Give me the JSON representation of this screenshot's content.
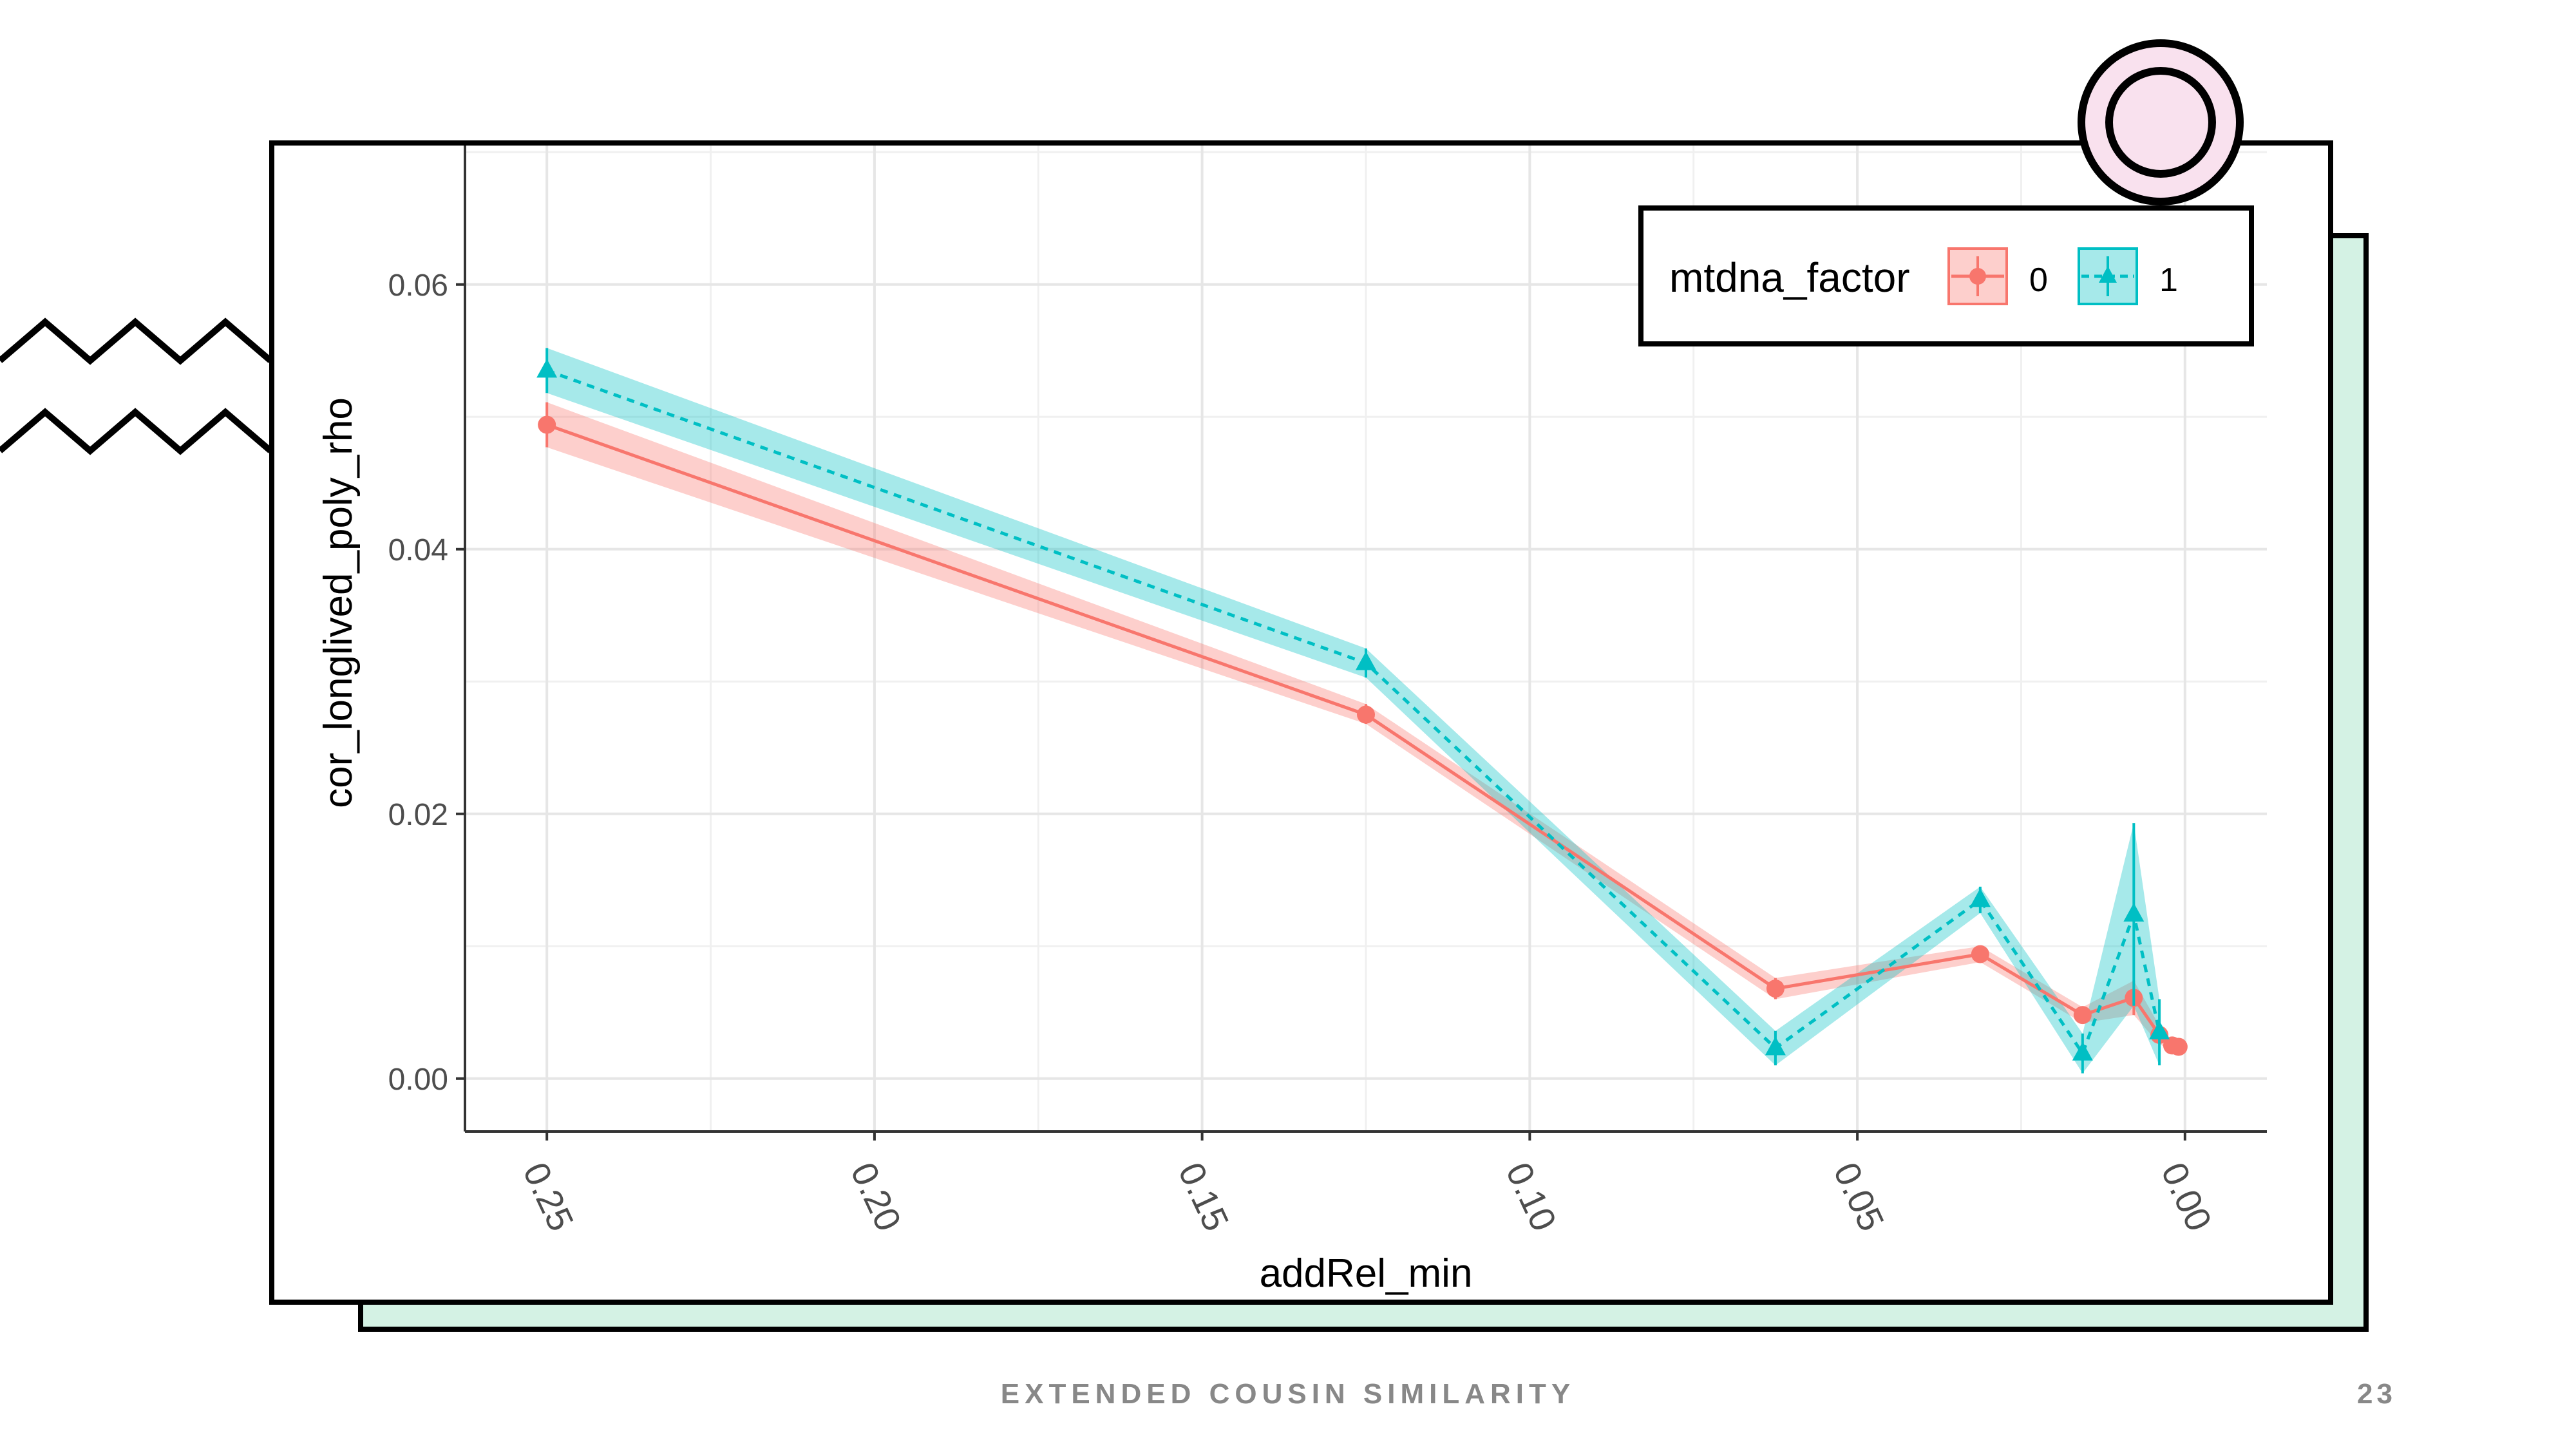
{
  "slide": {
    "footer_title": "EXTENDED COUSIN SIMILARITY",
    "page_number": "23",
    "colors": {
      "mint": "#d4f2e4",
      "ring_fill": "#f9e1ee",
      "border": "#000000",
      "footer": "#888888"
    }
  },
  "chart_data": {
    "type": "line",
    "title": "",
    "xlabel": "addRel_min",
    "ylabel": "cor_longlived_poly_rho",
    "x_reversed": true,
    "xlim": [
      0.2625,
      -0.0125
    ],
    "ylim": [
      -0.004,
      0.0705
    ],
    "x_ticks": [
      "0.25",
      "0.20",
      "0.15",
      "0.10",
      "0.05",
      "0.00"
    ],
    "y_ticks": [
      "0.00",
      "0.02",
      "0.04",
      "0.06"
    ],
    "grid": true,
    "legend": {
      "title": "mtdna_factor",
      "position": "top-right"
    },
    "series": [
      {
        "name": "0",
        "color": "#f8766d",
        "marker": "circle",
        "line_style": "solid",
        "x": [
          0.25,
          0.125,
          0.0625,
          0.03125,
          0.015625,
          0.0078125,
          0.00390625,
          0.001953125,
          0.0009765625
        ],
        "y": [
          0.0494,
          0.0275,
          0.0068,
          0.0094,
          0.0048,
          0.0061,
          0.0033,
          0.0025,
          0.0024
        ],
        "ymin": [
          0.0477,
          0.0268,
          0.006,
          0.0088,
          0.0042,
          0.0048,
          0.0026,
          0.0021,
          0.002
        ],
        "ymax": [
          0.0511,
          0.0283,
          0.0076,
          0.01,
          0.0054,
          0.0074,
          0.004,
          0.0029,
          0.0028
        ]
      },
      {
        "name": "1",
        "color": "#00bfc4",
        "marker": "triangle",
        "line_style": "dashed",
        "x": [
          0.25,
          0.125,
          0.0625,
          0.03125,
          0.015625,
          0.0078125,
          0.00390625
        ],
        "y": [
          0.0535,
          0.0314,
          0.0023,
          0.0135,
          0.0019,
          0.0124,
          0.0035
        ],
        "ymin": [
          0.0518,
          0.0303,
          0.001,
          0.0125,
          0.0004,
          0.0055,
          0.001
        ],
        "ymax": [
          0.0552,
          0.0325,
          0.0036,
          0.0145,
          0.0034,
          0.0193,
          0.006
        ]
      }
    ]
  }
}
